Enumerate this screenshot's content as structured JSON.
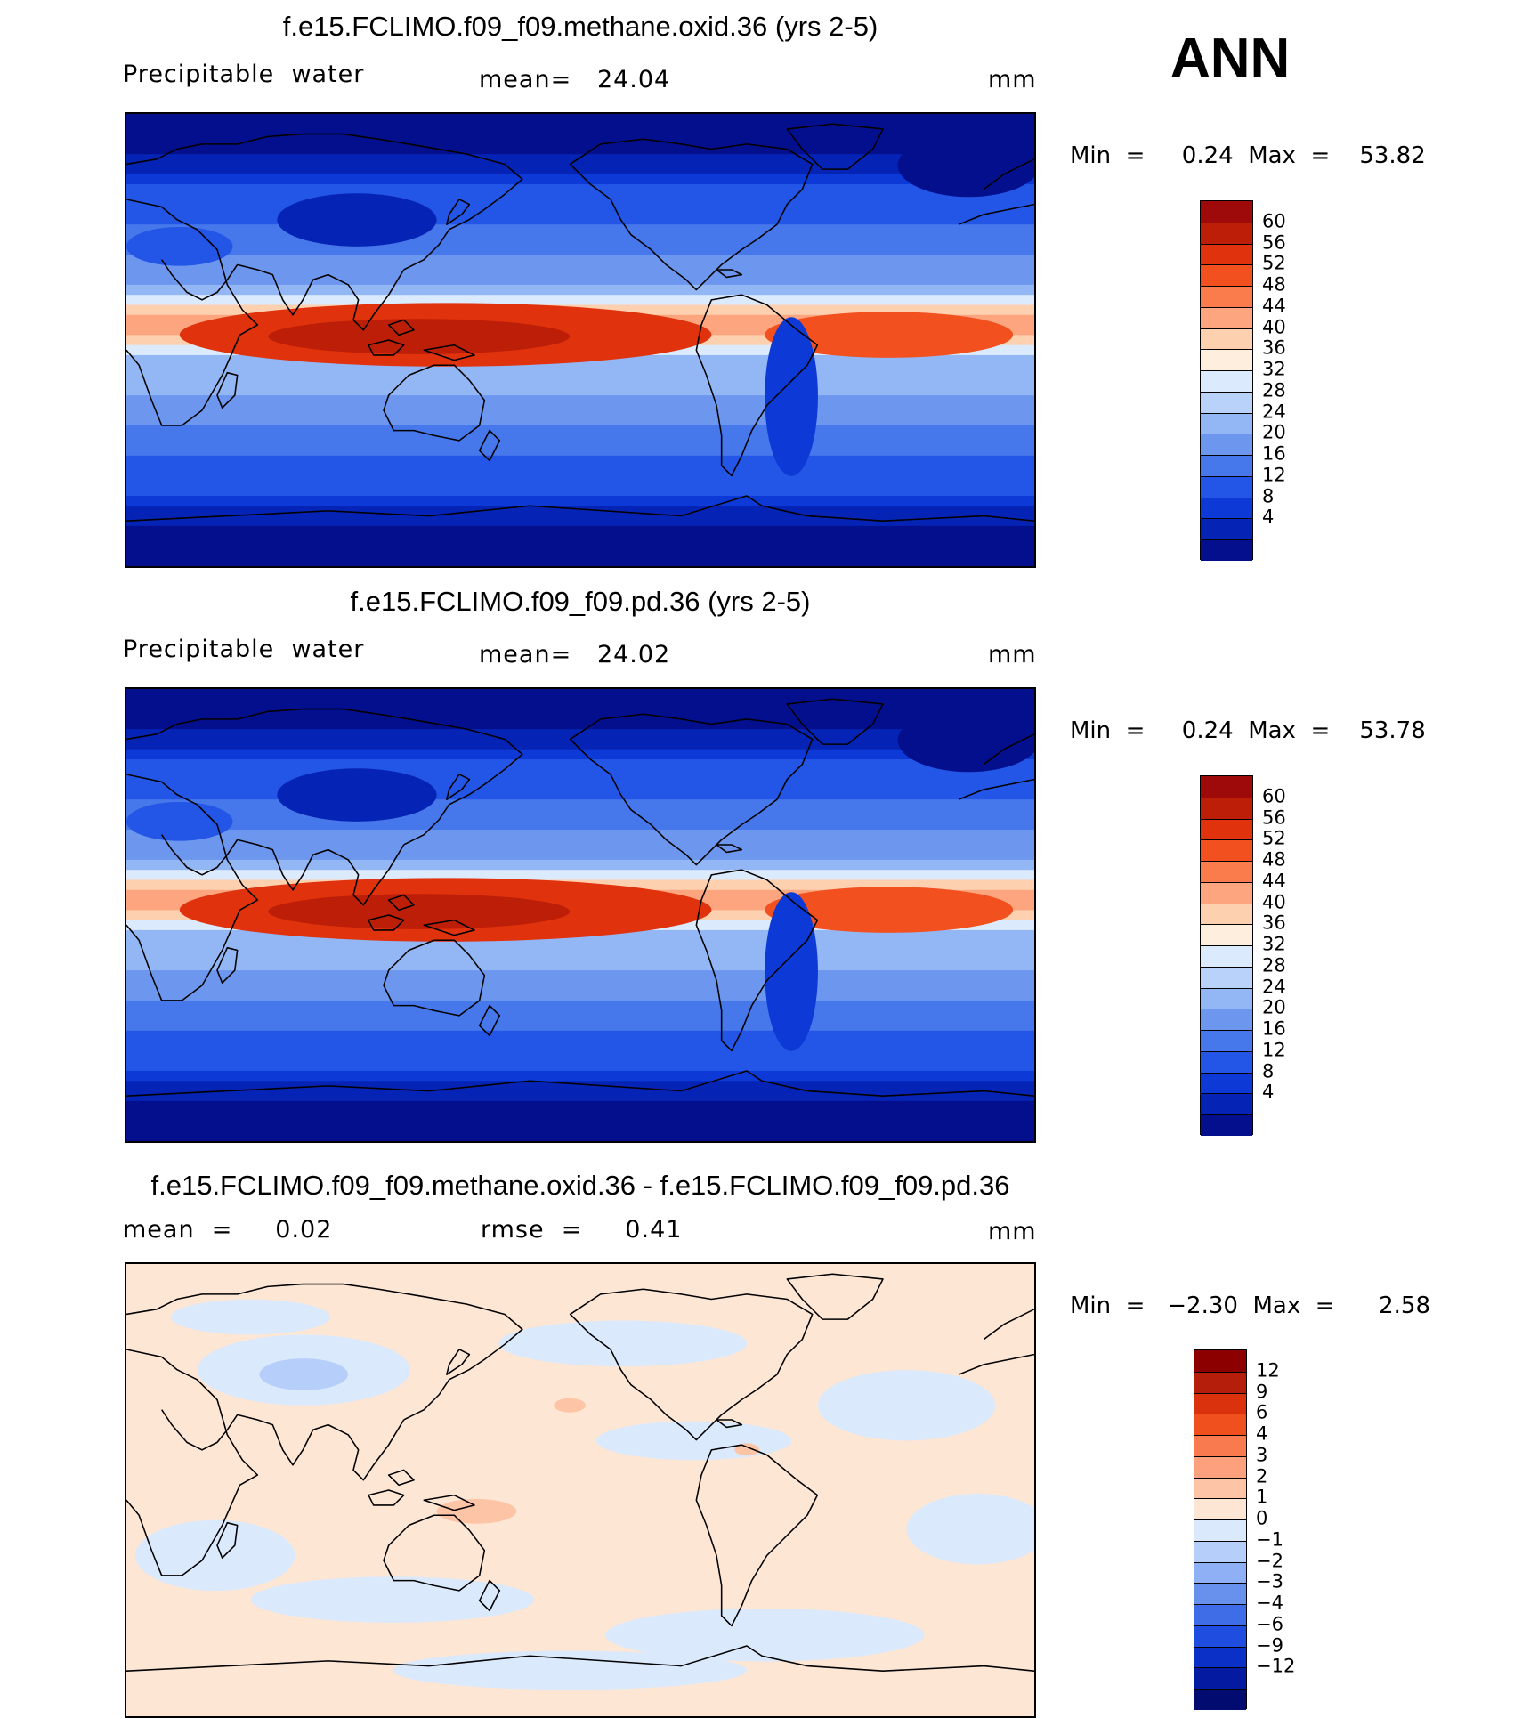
{
  "season": "ANN",
  "panels": [
    {
      "title": "f.e15.FCLIMO.f09_f09.methane.oxid.36 (yrs 2-5)",
      "left_label": "Precipitable  water",
      "mid_label": "mean=   24.04",
      "units": "mm",
      "minmax": "Min  =     0.24  Max  =    53.82",
      "kind": "abs",
      "colorbar": {
        "colors": [
          "#9e0a0a",
          "#bd1e08",
          "#e0320c",
          "#f2501e",
          "#fa7b4c",
          "#fca57e",
          "#fdd0b0",
          "#fdeede",
          "#dbeafc",
          "#b8d2fa",
          "#93b6f5",
          "#6d97ee",
          "#4677eb",
          "#2356e6",
          "#0d3ad6",
          "#0523b5",
          "#030f8c"
        ],
        "ticks": [
          "60",
          "56",
          "52",
          "48",
          "44",
          "40",
          "36",
          "32",
          "28",
          "24",
          "20",
          "16",
          "12",
          "8",
          "4"
        ]
      }
    },
    {
      "title": "f.e15.FCLIMO.f09_f09.pd.36 (yrs 2-5)",
      "left_label": "Precipitable  water",
      "mid_label": "mean=   24.02",
      "units": "mm",
      "minmax": "Min  =     0.24  Max  =    53.78",
      "kind": "abs",
      "colorbar": {
        "colors": [
          "#9e0a0a",
          "#bd1e08",
          "#e0320c",
          "#f2501e",
          "#fa7b4c",
          "#fca57e",
          "#fdd0b0",
          "#fdeede",
          "#dbeafc",
          "#b8d2fa",
          "#93b6f5",
          "#6d97ee",
          "#4677eb",
          "#2356e6",
          "#0d3ad6",
          "#0523b5",
          "#030f8c"
        ],
        "ticks": [
          "60",
          "56",
          "52",
          "48",
          "44",
          "40",
          "36",
          "32",
          "28",
          "24",
          "20",
          "16",
          "12",
          "8",
          "4"
        ]
      }
    },
    {
      "title": "f.e15.FCLIMO.f09_f09.methane.oxid.36 - f.e15.FCLIMO.f09_f09.pd.36",
      "left_label": "mean  =     0.02",
      "mid_label": "rmse  =     0.41",
      "units": "mm",
      "minmax": "Min  =   −2.30  Max  =      2.58",
      "kind": "diff",
      "colorbar": {
        "colors": [
          "#8c0000",
          "#b51e0a",
          "#d9320d",
          "#ef501e",
          "#f97a4e",
          "#fca07e",
          "#fdc4a6",
          "#fde6d4",
          "#dbe9fc",
          "#b6cffa",
          "#8fb0f4",
          "#6890ed",
          "#3f6de8",
          "#1f4de0",
          "#0a30c8",
          "#041aa0",
          "#020c70"
        ],
        "ticks": [
          "12",
          "9",
          "6",
          "4",
          "3",
          "2",
          "1",
          "0",
          "−1",
          "−2",
          "−3",
          "−4",
          "−6",
          "−9",
          "−12"
        ]
      }
    }
  ]
}
